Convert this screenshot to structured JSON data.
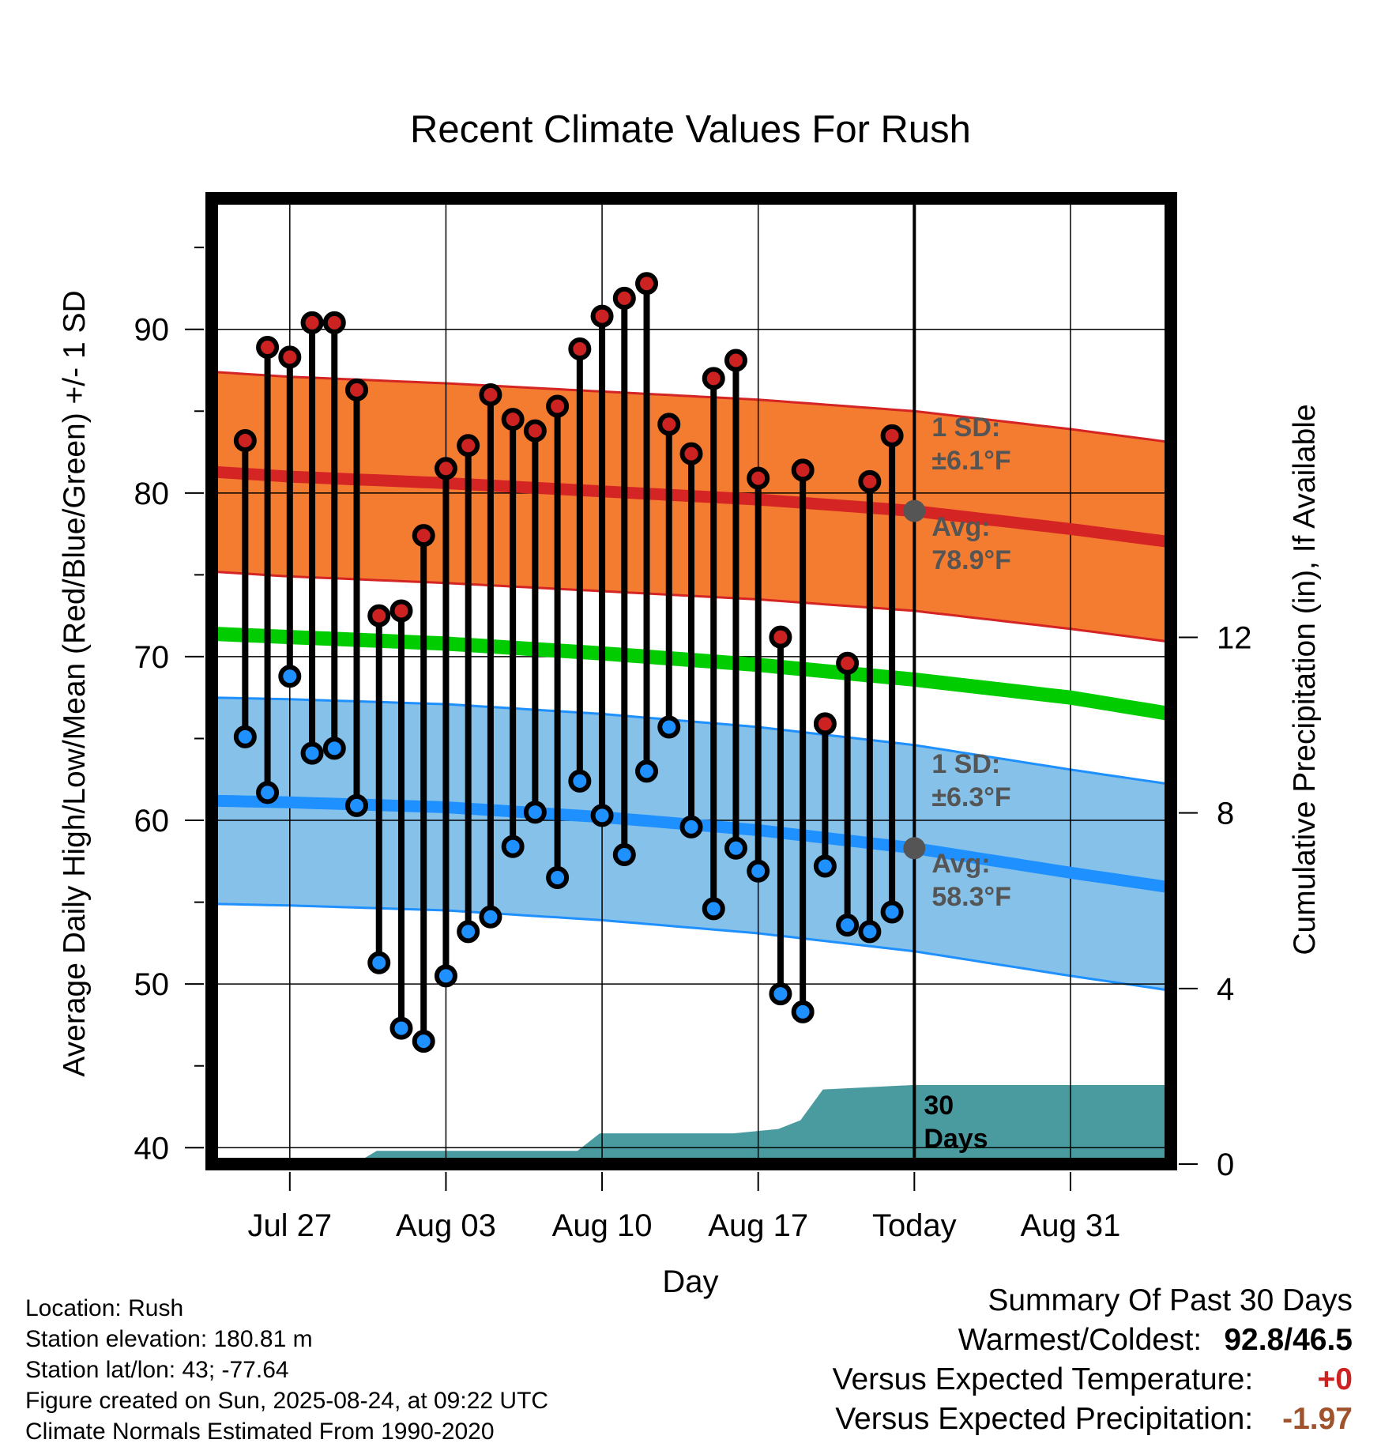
{
  "chart_data": {
    "type": "line",
    "title": "Recent Climate Values For Rush",
    "xlabel": "Day",
    "ylabel": "Average Daily High/Low/Mean (Red/Blue/Green) +/- 1 SD",
    "y2label": "Cumulative Precipitation (in), If Available",
    "xlim": [
      -3.5,
      39.5
    ],
    "ylim": [
      39,
      98
    ],
    "y2lim": [
      0,
      22
    ],
    "yticks": [
      40,
      50,
      60,
      70,
      80,
      90
    ],
    "y2ticks": [
      0,
      4,
      8,
      12
    ],
    "xticks": [
      {
        "day": 0,
        "label": "Jul 27"
      },
      {
        "day": 7,
        "label": "Aug 03"
      },
      {
        "day": 14,
        "label": "Aug 10"
      },
      {
        "day": 21,
        "label": "Aug 17"
      },
      {
        "day": 28,
        "label": "Today"
      },
      {
        "day": 35,
        "label": "Aug 31"
      }
    ],
    "today_day": 28,
    "grid": true,
    "daily": {
      "days": [
        -2,
        -1,
        0,
        1,
        2,
        3,
        4,
        5,
        6,
        7,
        8,
        9,
        10,
        11,
        12,
        13,
        14,
        15,
        16,
        17,
        18,
        19,
        20,
        21,
        22,
        23,
        24,
        25,
        26,
        27
      ],
      "highs": [
        83.2,
        88.9,
        88.3,
        90.4,
        90.4,
        86.3,
        72.5,
        72.8,
        77.4,
        81.5,
        82.9,
        86.0,
        84.5,
        83.8,
        85.3,
        88.8,
        90.8,
        91.9,
        92.8,
        84.2,
        82.4,
        87.0,
        88.1,
        80.9,
        71.2,
        81.4,
        65.9,
        69.6,
        80.7,
        83.5
      ],
      "lows": [
        65.1,
        61.7,
        68.8,
        64.1,
        64.4,
        60.9,
        51.3,
        47.3,
        46.5,
        50.5,
        53.2,
        54.1,
        58.4,
        60.5,
        56.5,
        62.4,
        60.3,
        57.9,
        63.0,
        65.7,
        59.6,
        54.6,
        58.3,
        56.9,
        49.4,
        48.3,
        57.2,
        53.6,
        53.2,
        54.4
      ]
    },
    "normals": {
      "days": [
        -3.5,
        0,
        7,
        14,
        21,
        28,
        35,
        39.5
      ],
      "high_mean": [
        81.3,
        81.0,
        80.6,
        80.1,
        79.6,
        78.9,
        77.8,
        77.0
      ],
      "high_sd": 6.1,
      "low_mean": [
        61.2,
        61.1,
        60.8,
        60.2,
        59.4,
        58.3,
        56.8,
        55.9
      ],
      "low_sd": 6.3,
      "daily_mean": [
        71.4,
        71.2,
        70.8,
        70.2,
        69.5,
        68.6,
        67.5,
        66.5
      ]
    },
    "precip": {
      "days": [
        -3.5,
        2.9,
        3.9,
        12.9,
        13.9,
        19.9,
        21.9,
        22.9,
        23.9,
        27.9,
        28.9,
        39.5
      ],
      "cumulative": [
        0,
        0,
        0.3,
        0.3,
        0.7,
        0.7,
        0.8,
        1.0,
        1.7,
        1.8,
        1.8,
        1.8
      ]
    },
    "annotations": {
      "high_sd_label1": "1 SD:",
      "high_sd_label2": "±6.1°F",
      "high_avg_label1": "Avg:",
      "high_avg_label2": "78.9°F",
      "low_sd_label1": "1 SD:",
      "low_sd_label2": "±6.3°F",
      "low_avg_label1": "Avg:",
      "low_avg_label2": "58.3°F",
      "days_label1": "30",
      "days_label2": "Days"
    },
    "colors": {
      "high_band": "#f47c30",
      "high_line": "#d42424",
      "low_band": "#85c1e9",
      "low_line": "#1e90ff",
      "mean_line": "#00cc00",
      "precip_fill": "#4a9ba0",
      "high_point": "#cc2222",
      "low_point": "#1e90ff",
      "today_point": "#555555"
    }
  },
  "footer": {
    "location": "Location: Rush",
    "elevation": "Station elevation: 180.81 m",
    "latlon": "Station lat/lon: 43; -77.64",
    "created": "Figure created on Sun, 2025-08-24, at 09:22 UTC",
    "normals": "Climate Normals Estimated From 1990-2020"
  },
  "summary": {
    "title": "Summary Of Past 30 Days",
    "warmest_label": "Warmest/Coldest:",
    "warmest_value": "92.8/46.5",
    "temp_label": "Versus Expected Temperature:",
    "temp_value": "+0",
    "precip_label": "Versus Expected Precipitation:",
    "precip_value": "-1.97"
  }
}
